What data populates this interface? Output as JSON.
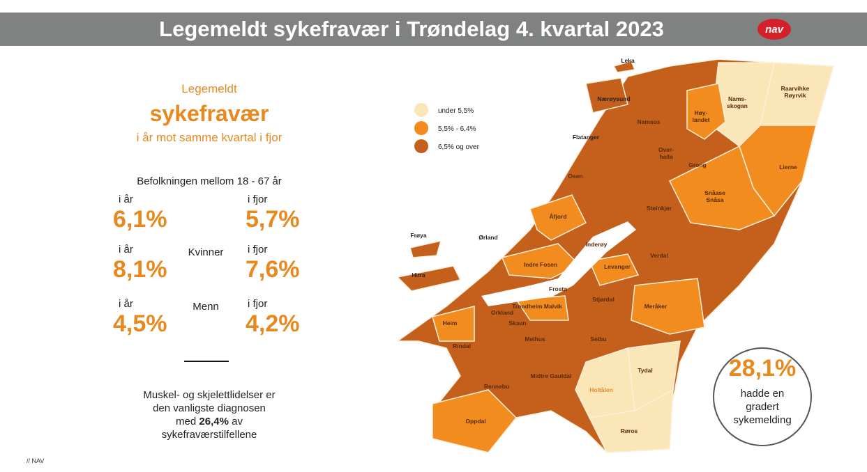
{
  "header": {
    "title": "Legemeldt sykefravær i Trøndelag 4. kvartal 2023",
    "logo": "nav"
  },
  "summary": {
    "line1": "Legemeldt",
    "line2": "sykefravær",
    "line3": "i år mot samme kvartal i fjor"
  },
  "population": {
    "label": "Befolkningen mellom 18 - 67 år",
    "groups": [
      {
        "this_year_label": "i år",
        "last_year_label": "i fjor",
        "this_year": "6,1%",
        "last_year": "5,7%"
      },
      {
        "name": "Kvinner",
        "this_year_label": "i år",
        "last_year_label": "i fjor",
        "this_year": "8,1%",
        "last_year": "7,6%"
      },
      {
        "name": "Menn",
        "this_year_label": "i år",
        "last_year_label": "i fjor",
        "this_year": "4,5%",
        "last_year": "4,2%"
      }
    ]
  },
  "note": {
    "lines": [
      "Muskel- og skjelettlidelser er",
      "den vanligste diagnosen"
    ],
    "pre": "med",
    "bold": "26,4%",
    "post": "av",
    "last": "sykefraværstilfellene"
  },
  "legend": [
    {
      "label": "under 5,5%",
      "color": "#fbe6b8"
    },
    {
      "label": "5,5% - 6,4%",
      "color": "#f28c1f"
    },
    {
      "label": "6,5% og over",
      "color": "#c4601b"
    }
  ],
  "map": {
    "labels": [
      "Leka",
      "Nærøysund",
      [
        "Namsos"
      ],
      [
        "Høy-",
        "landet"
      ],
      [
        "Nams-",
        "skogan"
      ],
      [
        "Raarvihke",
        "Røyrvik"
      ],
      "Flatanger",
      [
        "Over-",
        "halla"
      ],
      "Grong",
      "Lierne",
      "Osen",
      [
        "Snåase",
        "Snåsa"
      ],
      "Åfjord",
      "Steinkjer",
      "Frøya",
      "Ørland",
      "Inderøy",
      "Verdal",
      "Indre Fosen",
      "Levanger",
      "Hitra",
      "Frosta",
      "Stjørdal",
      "Meråker",
      "Trondheim Malvik",
      "Heim",
      "Orkland",
      "Skaun",
      "Melhus",
      "Selbu",
      "Rindal",
      "Tydal",
      "Midtre Gauldal",
      "Holtålen",
      "Rennebu",
      "Røros",
      "Oppdal"
    ]
  },
  "callout": {
    "value": "28,1%",
    "lines": [
      "hadde en",
      "gradert",
      "sykemelding"
    ]
  },
  "footer": "// NAV"
}
